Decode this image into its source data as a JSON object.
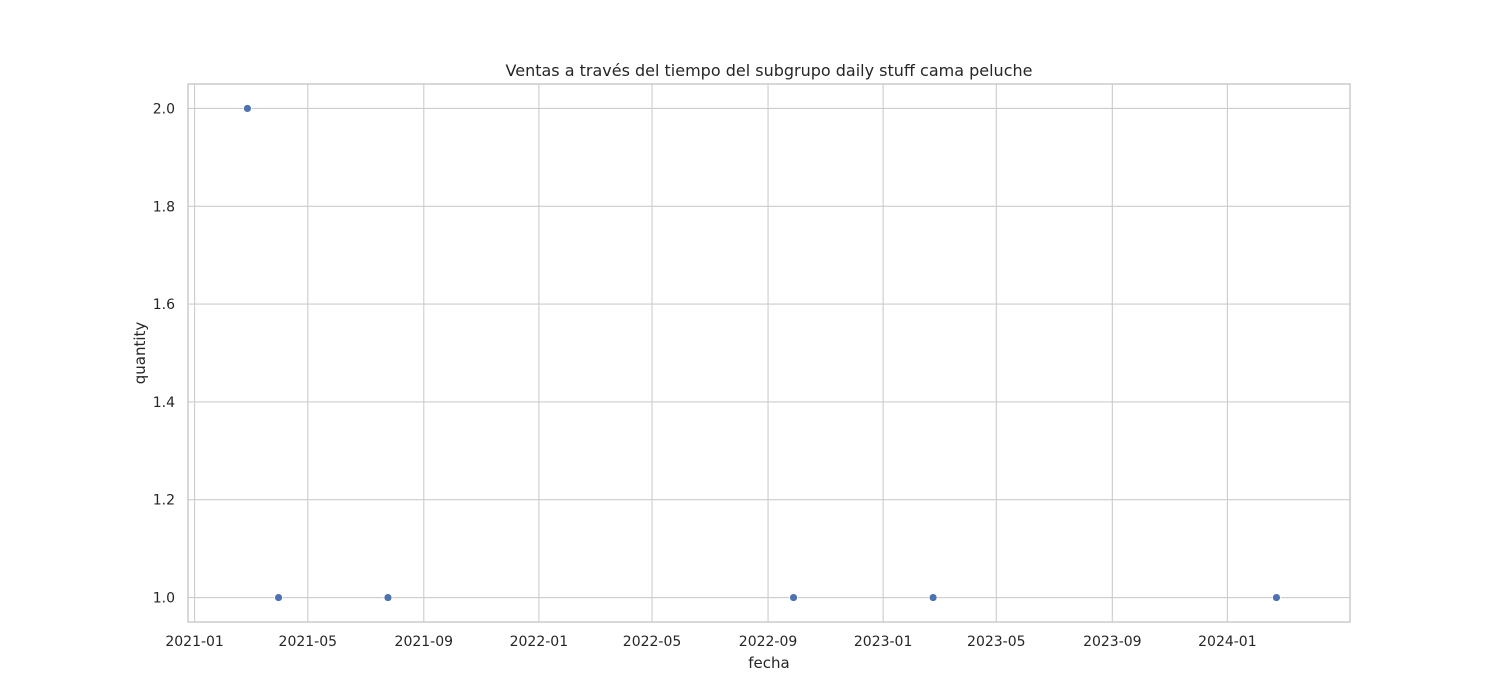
{
  "chart_data": {
    "type": "scatter",
    "title": "Ventas a través del tiempo del subgrupo daily stuff cama peluche",
    "xlabel": "fecha",
    "ylabel": "quantity",
    "x_scale": "date",
    "xlim": [
      "2020-12-25",
      "2024-05-10"
    ],
    "ylim": [
      0.95,
      2.05
    ],
    "x_ticks": [
      "2021-01-01",
      "2021-05-01",
      "2021-09-01",
      "2022-01-01",
      "2022-05-01",
      "2022-09-01",
      "2023-01-01",
      "2023-05-01",
      "2023-09-01",
      "2024-01-01"
    ],
    "x_tick_labels": [
      "2021-01",
      "2021-05",
      "2021-09",
      "2022-01",
      "2022-05",
      "2022-09",
      "2023-01",
      "2023-05",
      "2023-09",
      "2024-01"
    ],
    "y_ticks": [
      1.0,
      1.2,
      1.4,
      1.6,
      1.8,
      2.0
    ],
    "y_tick_labels": [
      "1.0",
      "1.2",
      "1.4",
      "1.6",
      "1.8",
      "2.0"
    ],
    "grid": true,
    "series": [
      {
        "color": "#4c72b0",
        "points": [
          {
            "x": "2021-02-26",
            "y": 2
          },
          {
            "x": "2021-03-31",
            "y": 1
          },
          {
            "x": "2021-07-25",
            "y": 1
          },
          {
            "x": "2022-09-28",
            "y": 1
          },
          {
            "x": "2023-02-23",
            "y": 1
          },
          {
            "x": "2024-02-22",
            "y": 1
          }
        ]
      }
    ]
  }
}
